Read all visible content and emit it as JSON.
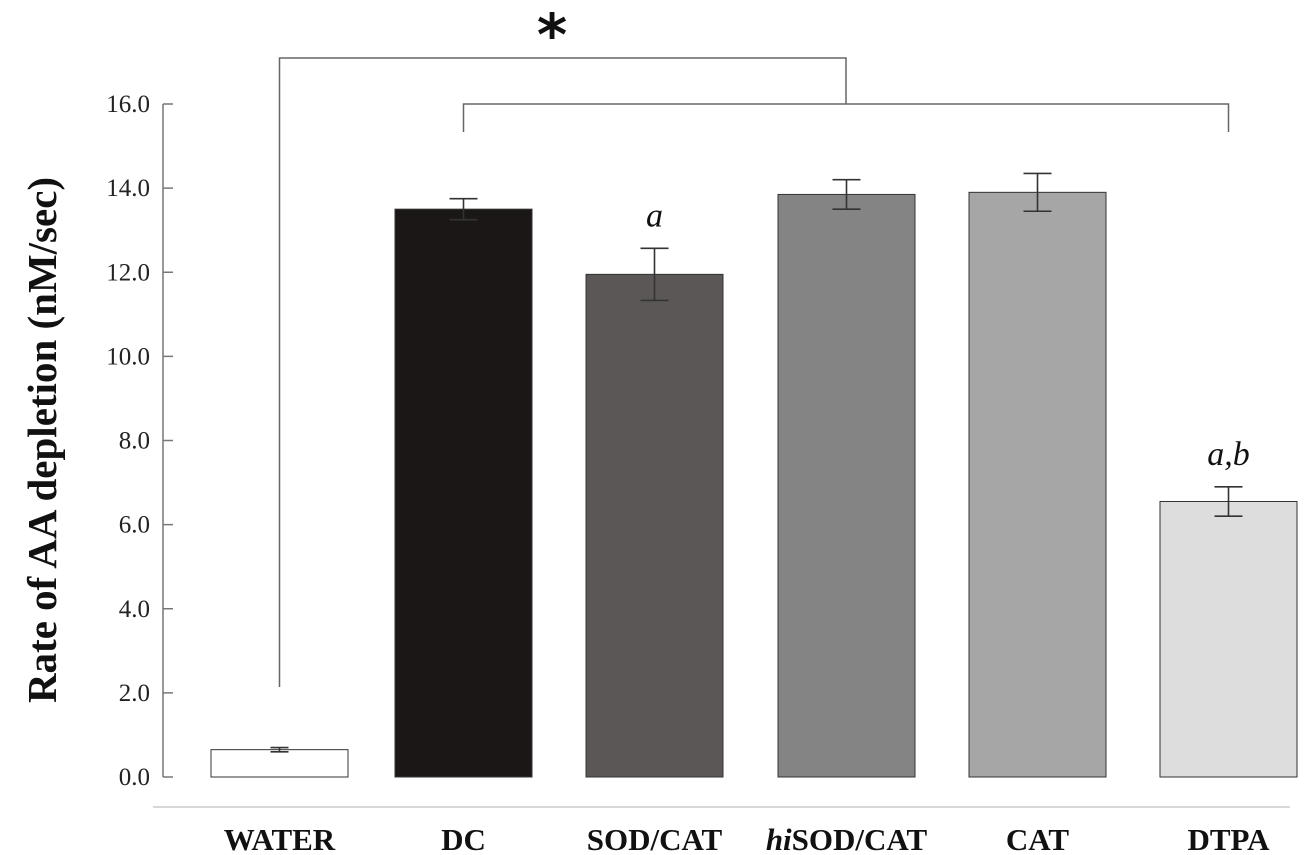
{
  "chart_data": {
    "type": "bar",
    "categories": [
      {
        "pre": "",
        "italic": "",
        "post": "WATER"
      },
      {
        "pre": "",
        "italic": "",
        "post": "DC"
      },
      {
        "pre": "",
        "italic": "",
        "post": "SOD/CAT"
      },
      {
        "pre": "",
        "italic": "hi",
        "post": "SOD/CAT"
      },
      {
        "pre": "",
        "italic": "",
        "post": "CAT"
      },
      {
        "pre": "",
        "italic": "",
        "post": "DTPA"
      }
    ],
    "values": [
      0.65,
      13.5,
      11.95,
      13.85,
      13.9,
      6.55
    ],
    "errors": [
      0.05,
      0.25,
      0.62,
      0.35,
      0.45,
      0.35
    ],
    "bar_colors": [
      "#ffffff",
      "#1c1717",
      "#5c5757",
      "#848484",
      "#a6a6a6",
      "#dddddd"
    ],
    "annotations": [
      "",
      "",
      "a",
      "",
      "",
      "a,b"
    ],
    "significance": "*",
    "ylabel": "Rate of AA depletion (nM/sec)",
    "xlabel": "",
    "ylim": [
      0,
      16
    ],
    "yticks": [
      "0.0",
      "2.0",
      "4.0",
      "6.0",
      "8.0",
      "10.0",
      "12.0",
      "14.0",
      "16.0"
    ],
    "grid": false,
    "legend": "none"
  }
}
